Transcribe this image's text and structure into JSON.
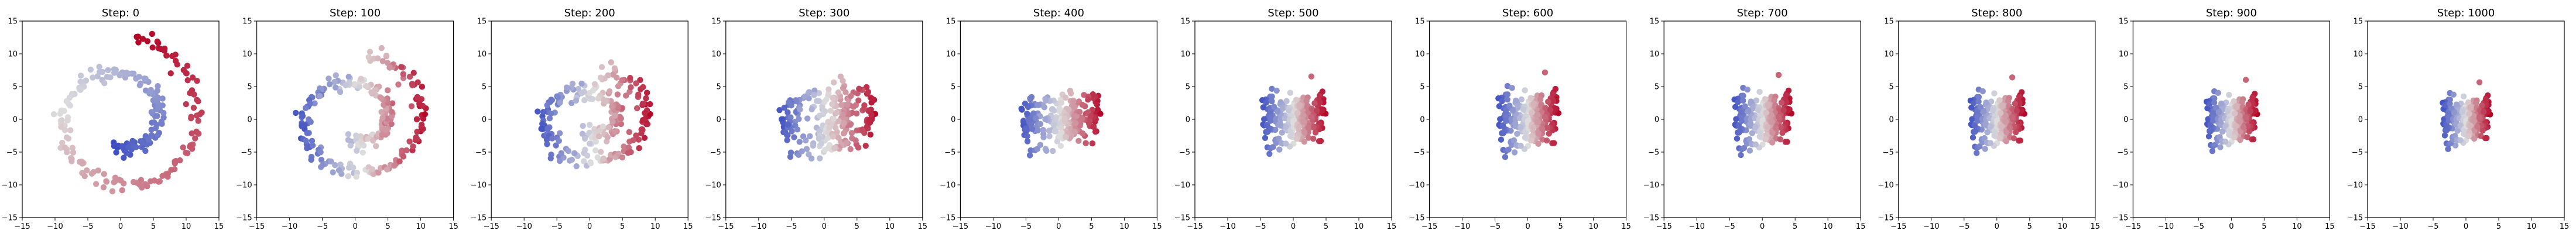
{
  "chart_data": {
    "type": "scatter",
    "description_of_series": "coolwarm colored point cloud",
    "xlim": [
      -15,
      15
    ],
    "ylim": [
      -15,
      15
    ],
    "xticks": [
      -15,
      -10,
      -5,
      0,
      5,
      10,
      15
    ],
    "yticks": [
      -15,
      -10,
      -5,
      0,
      5,
      10,
      15
    ],
    "tick_labels": [
      "−15",
      "−10",
      "−5",
      "0",
      "5",
      "10",
      "15"
    ],
    "grid": false,
    "colormap": {
      "low": "#3b4cc0",
      "mid": "#dddddd",
      "high": "#b40426"
    },
    "panels": [
      {
        "title": "Step: 0",
        "step": 0
      },
      {
        "title": "Step: 100",
        "step": 100
      },
      {
        "title": "Step: 200",
        "step": 200
      },
      {
        "title": "Step: 300",
        "step": 300
      },
      {
        "title": "Step: 400",
        "step": 400
      },
      {
        "title": "Step: 500",
        "step": 500
      },
      {
        "title": "Step: 600",
        "step": 600
      },
      {
        "title": "Step: 700",
        "step": 700
      },
      {
        "title": "Step: 800",
        "step": 800
      },
      {
        "title": "Step: 900",
        "step": 900
      },
      {
        "title": "Step: 1000",
        "step": 1000
      }
    ],
    "spiral": {
      "t_min": 4.5,
      "t_max": 14.0,
      "points": 240,
      "noise": 0.6
    }
  }
}
